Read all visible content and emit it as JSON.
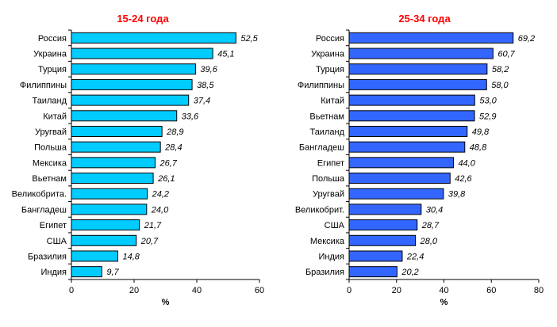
{
  "chart_data": [
    {
      "type": "bar",
      "orientation": "horizontal",
      "title": "15-24 года",
      "xlabel": "%",
      "ylabel": "",
      "xlim": [
        0,
        60
      ],
      "xticks": [
        0,
        20,
        40,
        60
      ],
      "bar_color": "#00ccff",
      "categories": [
        "Россия",
        "Украина",
        "Турция",
        "Филиппины",
        "Таиланд",
        "Китай",
        "Уругвай",
        "Польша",
        "Мексика",
        "Вьетнам",
        "Великобрита.",
        "Бангладеш",
        "Египет",
        "США",
        "Бразилия",
        "Индия"
      ],
      "values": [
        52.5,
        45.1,
        39.6,
        38.5,
        37.4,
        33.6,
        28.9,
        28.4,
        26.7,
        26.1,
        24.2,
        24.0,
        21.7,
        20.7,
        14.8,
        9.7
      ],
      "value_labels": [
        "52,5",
        "45,1",
        "39,6",
        "38,5",
        "37,4",
        "33,6",
        "28,9",
        "28,4",
        "26,7",
        "26,1",
        "24,2",
        "24,0",
        "21,7",
        "20,7",
        "14,8",
        "9,7"
      ]
    },
    {
      "type": "bar",
      "orientation": "horizontal",
      "title": "25-34 года",
      "xlabel": "%",
      "ylabel": "",
      "xlim": [
        0,
        80
      ],
      "xticks": [
        0,
        20,
        40,
        60,
        80
      ],
      "bar_color": "#3366ff",
      "categories": [
        "Россия",
        "Украина",
        "Турция",
        "Филиппины",
        "Китай",
        "Вьетнам",
        "Таиланд",
        "Бангладеш",
        "Египет",
        "Польша",
        "Уругвай",
        "Великобрит.",
        "США",
        "Мексика",
        "Индия",
        "Бразилия"
      ],
      "values": [
        69.2,
        60.7,
        58.2,
        58.0,
        53.0,
        52.9,
        49.8,
        48.8,
        44.0,
        42.6,
        39.8,
        30.4,
        28.7,
        28.0,
        22.4,
        20.2
      ],
      "value_labels": [
        "69,2",
        "60,7",
        "58,2",
        "58,0",
        "53,0",
        "52,9",
        "49,8",
        "48,8",
        "44,0",
        "42,6",
        "39,8",
        "30,4",
        "28,7",
        "28,0",
        "22,4",
        "20,2"
      ]
    }
  ]
}
